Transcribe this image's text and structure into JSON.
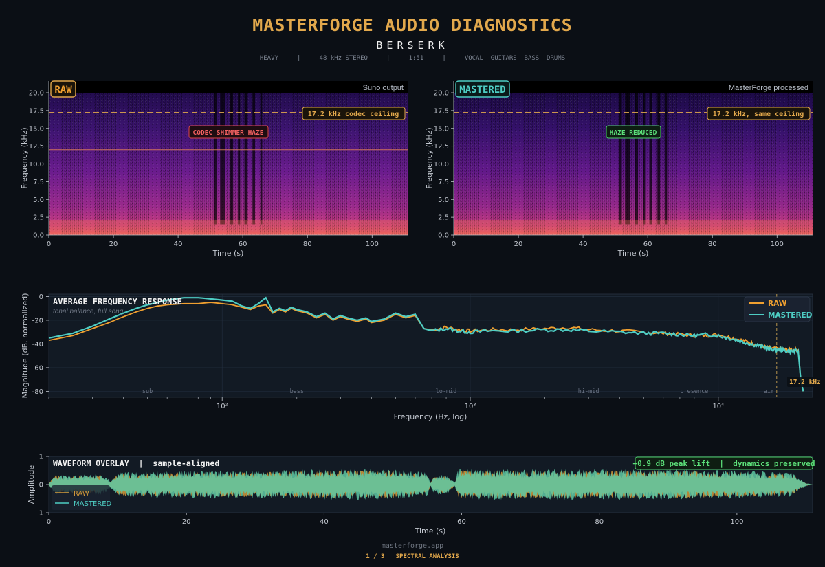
{
  "header": {
    "title": "MASTERFORGE AUDIO DIAGNOSTICS",
    "track": "BERSERK",
    "meta": "HEAVY     |     48 kHz STEREO     |     1:51     |     VOCAL  GUITARS  BASS  DRUMS"
  },
  "footer": {
    "site": "masterforge.app",
    "page": "1 / 3   SPECTRAL ANALYSIS"
  },
  "colors": {
    "raw": "#f0a030",
    "mastered": "#4ecdc4",
    "accent": "#e2a84c",
    "haze_red": "#e04848",
    "reduced_green": "#4cd06a"
  },
  "chart_data": [
    {
      "type": "heatmap",
      "id": "spectrogram-raw",
      "badge": "RAW",
      "source_label": "Suno output",
      "xlabel": "Time (s)",
      "ylabel": "Frequency (kHz)",
      "xlim": [
        0,
        111
      ],
      "ylim": [
        0,
        20
      ],
      "x_ticks": [
        "0",
        "20",
        "40",
        "60",
        "80",
        "100"
      ],
      "y_ticks": [
        "0.0",
        "2.5",
        "5.0",
        "7.5",
        "10.0",
        "12.5",
        "15.0",
        "17.5",
        "20.0"
      ],
      "ceiling_khz": 17.2,
      "ceiling_label": "17.2 kHz codec ceiling",
      "haze_line_khz": 12,
      "annotation": "CODEC SHIMMER HAZE",
      "colormap": "magma"
    },
    {
      "type": "heatmap",
      "id": "spectrogram-mastered",
      "badge": "MASTERED",
      "source_label": "MasterForge processed",
      "xlabel": "Time (s)",
      "ylabel": "Frequency (kHz)",
      "xlim": [
        0,
        111
      ],
      "ylim": [
        0,
        20
      ],
      "x_ticks": [
        "0",
        "20",
        "40",
        "60",
        "80",
        "100"
      ],
      "y_ticks": [
        "0.0",
        "2.5",
        "5.0",
        "7.5",
        "10.0",
        "12.5",
        "15.0",
        "17.5",
        "20.0"
      ],
      "ceiling_khz": 17.2,
      "ceiling_label": "17.2 kHz, same ceiling",
      "annotation": "HAZE REDUCED",
      "colormap": "magma"
    },
    {
      "type": "line",
      "id": "frequency-response",
      "title": "AVERAGE FREQUENCY RESPONSE",
      "subtitle": "tonal balance, full song",
      "xlabel": "Frequency (Hz, log)",
      "ylabel": "Magnitude (dB, normalized)",
      "xscale": "log",
      "xlim": [
        20,
        24000
      ],
      "ylim": [
        -85,
        2
      ],
      "y_ticks": [
        "0",
        "-20",
        "-40",
        "-60",
        "-80"
      ],
      "x_ticks": [
        "10²",
        "10³",
        "10⁴"
      ],
      "bands": [
        "sub",
        "bass",
        "lo-mid",
        "hi-mid",
        "presence",
        "air"
      ],
      "cutoff_hz": 17200,
      "cutoff_label": "17.2 kHz",
      "legend": "top-right",
      "series": [
        {
          "name": "RAW",
          "points": [
            [
              20,
              -37
            ],
            [
              25,
              -33
            ],
            [
              30,
              -27
            ],
            [
              35,
              -22
            ],
            [
              40,
              -17
            ],
            [
              45,
              -13
            ],
            [
              50,
              -10
            ],
            [
              55,
              -8
            ],
            [
              60,
              -7
            ],
            [
              70,
              -6
            ],
            [
              80,
              -6
            ],
            [
              90,
              -5
            ],
            [
              100,
              -6
            ],
            [
              110,
              -7
            ],
            [
              120,
              -9
            ],
            [
              130,
              -11
            ],
            [
              140,
              -8
            ],
            [
              150,
              -7
            ],
            [
              160,
              -14
            ],
            [
              170,
              -11
            ],
            [
              180,
              -13
            ],
            [
              190,
              -10
            ],
            [
              200,
              -12
            ],
            [
              220,
              -14
            ],
            [
              240,
              -18
            ],
            [
              260,
              -15
            ],
            [
              280,
              -20
            ],
            [
              300,
              -17
            ],
            [
              320,
              -19
            ],
            [
              350,
              -21
            ],
            [
              380,
              -19
            ],
            [
              400,
              -22
            ],
            [
              450,
              -20
            ],
            [
              500,
              -15
            ],
            [
              550,
              -18
            ],
            [
              600,
              -16
            ],
            [
              650,
              -27
            ],
            [
              700,
              -28
            ],
            [
              800,
              -26
            ],
            [
              900,
              -28
            ],
            [
              1000,
              -29
            ],
            [
              1200,
              -28
            ],
            [
              1500,
              -28
            ],
            [
              2000,
              -27
            ],
            [
              2500,
              -26
            ],
            [
              3000,
              -28
            ],
            [
              4000,
              -29
            ],
            [
              5000,
              -30
            ],
            [
              6000,
              -31
            ],
            [
              7000,
              -32
            ],
            [
              8000,
              -33
            ],
            [
              9000,
              -33
            ],
            [
              10000,
              -32
            ],
            [
              11000,
              -34
            ],
            [
              12000,
              -36
            ],
            [
              13000,
              -38
            ],
            [
              14000,
              -40
            ],
            [
              15000,
              -42
            ],
            [
              16000,
              -43
            ],
            [
              17000,
              -44
            ],
            [
              18000,
              -44
            ],
            [
              19000,
              -45
            ],
            [
              20000,
              -45
            ],
            [
              21000,
              -45
            ],
            [
              21500,
              -70
            ],
            [
              22000,
              -80
            ]
          ]
        },
        {
          "name": "MASTERED",
          "points": [
            [
              20,
              -35
            ],
            [
              25,
              -31
            ],
            [
              30,
              -25
            ],
            [
              35,
              -19
            ],
            [
              40,
              -14
            ],
            [
              45,
              -10
            ],
            [
              50,
              -7
            ],
            [
              55,
              -5
            ],
            [
              60,
              -3
            ],
            [
              70,
              -1
            ],
            [
              80,
              -1
            ],
            [
              90,
              -2
            ],
            [
              100,
              -3
            ],
            [
              110,
              -4
            ],
            [
              120,
              -8
            ],
            [
              130,
              -10
            ],
            [
              140,
              -6
            ],
            [
              150,
              -1
            ],
            [
              160,
              -13
            ],
            [
              170,
              -10
            ],
            [
              180,
              -12
            ],
            [
              190,
              -9
            ],
            [
              200,
              -11
            ],
            [
              220,
              -13
            ],
            [
              240,
              -17
            ],
            [
              260,
              -14
            ],
            [
              280,
              -19
            ],
            [
              300,
              -16
            ],
            [
              320,
              -18
            ],
            [
              350,
              -20
            ],
            [
              380,
              -18
            ],
            [
              400,
              -21
            ],
            [
              450,
              -19
            ],
            [
              500,
              -14
            ],
            [
              550,
              -17
            ],
            [
              600,
              -15
            ],
            [
              650,
              -27
            ],
            [
              700,
              -29
            ],
            [
              800,
              -27
            ],
            [
              900,
              -29
            ],
            [
              1000,
              -30
            ],
            [
              1200,
              -29
            ],
            [
              1500,
              -29
            ],
            [
              2000,
              -28
            ],
            [
              2500,
              -28
            ],
            [
              3000,
              -29
            ],
            [
              4000,
              -30
            ],
            [
              5000,
              -31
            ],
            [
              6000,
              -31
            ],
            [
              7000,
              -32
            ],
            [
              8000,
              -33
            ],
            [
              9000,
              -32
            ],
            [
              10000,
              -33
            ],
            [
              11000,
              -35
            ],
            [
              12000,
              -37
            ],
            [
              13000,
              -39
            ],
            [
              14000,
              -41
            ],
            [
              15000,
              -42
            ],
            [
              16000,
              -44
            ],
            [
              17000,
              -45
            ],
            [
              18000,
              -45
            ],
            [
              19000,
              -46
            ],
            [
              20000,
              -46
            ],
            [
              21000,
              -46
            ],
            [
              21500,
              -70
            ],
            [
              22000,
              -80
            ]
          ]
        }
      ]
    },
    {
      "type": "area",
      "id": "waveform-overlay",
      "title": "WAVEFORM OVERLAY  |  sample-aligned",
      "badge": "+0.9 dB peak lift  |  dynamics preserved",
      "xlabel": "Time (s)",
      "ylabel": "Amplitude",
      "xlim": [
        0,
        111
      ],
      "ylim": [
        -1,
        1
      ],
      "x_ticks": [
        "0",
        "20",
        "40",
        "60",
        "80",
        "100"
      ],
      "y_ticks": [
        "1",
        "0",
        "-1"
      ],
      "reference_lines": [
        0.55,
        -0.55
      ],
      "legend": "lower-left",
      "series": [
        {
          "name": "RAW",
          "envelope": [
            [
              0,
              0.05
            ],
            [
              1,
              0.35
            ],
            [
              3,
              0.3
            ],
            [
              8,
              0.35
            ],
            [
              9,
              0.1
            ],
            [
              10,
              0.4
            ],
            [
              20,
              0.45
            ],
            [
              30,
              0.45
            ],
            [
              40,
              0.5
            ],
            [
              50,
              0.5
            ],
            [
              55,
              0.4
            ],
            [
              55.5,
              0.05
            ],
            [
              56,
              0.35
            ],
            [
              58,
              0.3
            ],
            [
              59,
              0.05
            ],
            [
              59.5,
              0.5
            ],
            [
              70,
              0.5
            ],
            [
              80,
              0.5
            ],
            [
              90,
              0.5
            ],
            [
              100,
              0.45
            ],
            [
              108,
              0.4
            ],
            [
              110,
              0.05
            ],
            [
              111,
              0
            ]
          ]
        },
        {
          "name": "MASTERED",
          "envelope": [
            [
              0,
              0.05
            ],
            [
              1,
              0.38
            ],
            [
              3,
              0.33
            ],
            [
              8,
              0.38
            ],
            [
              9,
              0.12
            ],
            [
              10,
              0.44
            ],
            [
              20,
              0.5
            ],
            [
              30,
              0.5
            ],
            [
              40,
              0.55
            ],
            [
              50,
              0.55
            ],
            [
              55,
              0.44
            ],
            [
              55.5,
              0.06
            ],
            [
              56,
              0.38
            ],
            [
              58,
              0.33
            ],
            [
              59,
              0.06
            ],
            [
              59.5,
              0.55
            ],
            [
              70,
              0.55
            ],
            [
              80,
              0.55
            ],
            [
              90,
              0.55
            ],
            [
              100,
              0.5
            ],
            [
              108,
              0.44
            ],
            [
              110,
              0.06
            ],
            [
              111,
              0
            ]
          ]
        }
      ]
    }
  ]
}
